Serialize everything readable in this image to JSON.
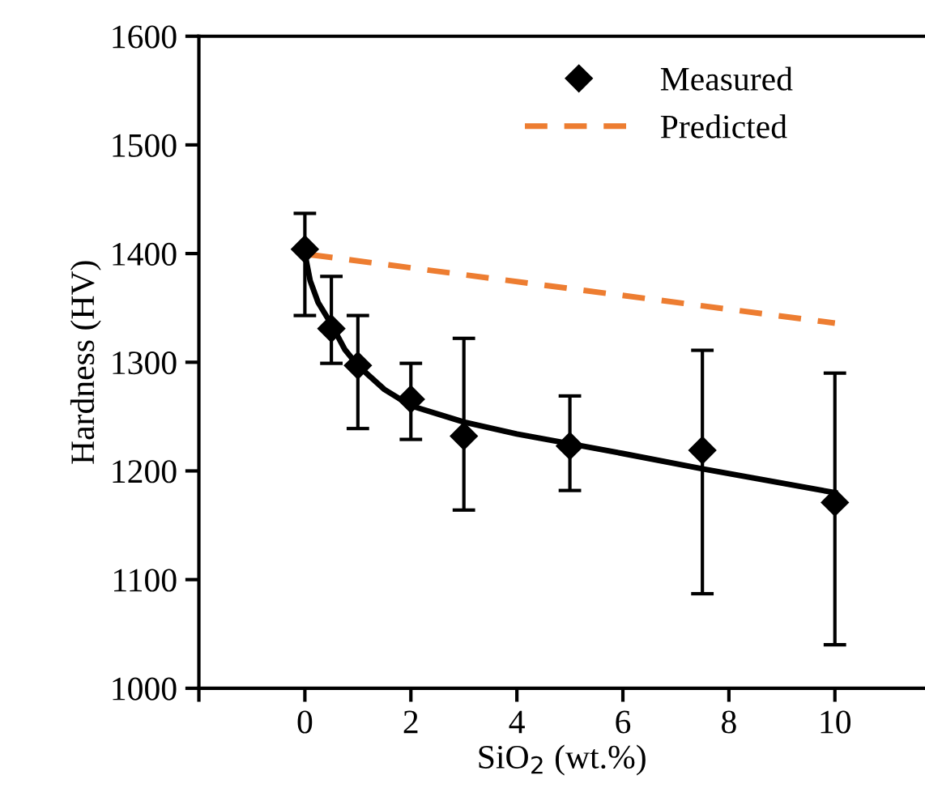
{
  "chart_data": {
    "type": "scatter",
    "xlabel": "SiO$_{2}$ (wt.%)",
    "ylabel": "Hardness (HV)",
    "xlim": [
      -2,
      11.7
    ],
    "xticks": [
      {
        "value": -2,
        "label": null
      },
      0,
      2,
      4,
      6,
      8,
      10
    ],
    "ylim": [
      1000,
      1600
    ],
    "yticks": [
      1000,
      1100,
      1200,
      1300,
      1400,
      1500,
      1600
    ],
    "grid": false,
    "legend": "top right",
    "series": [
      {
        "name": "Measured",
        "color": "#000000",
        "marker": "diamond",
        "x": [
          0,
          0.5,
          1,
          2,
          3,
          5,
          7.5,
          10
        ],
        "values": [
          1404,
          1331,
          1297,
          1266,
          1232,
          1223,
          1219,
          1171
        ],
        "errors": [
          [
            1343,
            1437
          ],
          [
            1299,
            1379
          ],
          [
            1239,
            1343
          ],
          [
            1229,
            1299
          ],
          [
            1164,
            1322
          ],
          [
            1182,
            1269
          ],
          [
            1087,
            1311
          ],
          [
            1040,
            1290
          ]
        ]
      },
      {
        "type": "line",
        "color": "#000000",
        "line_style": "solid",
        "x": [
          0,
          0.1,
          0.25,
          0.5,
          0.75,
          1,
          1.5,
          2,
          3,
          4,
          5,
          6,
          7.5,
          10
        ],
        "values": [
          1400,
          1375,
          1355,
          1335,
          1312,
          1297,
          1275,
          1260,
          1245,
          1234,
          1225,
          1216,
          1202,
          1180
        ]
      },
      {
        "name": "Predicted",
        "type": "line",
        "color": "#ed7d31",
        "line_style": "dashed",
        "x": [
          0.1,
          10
        ],
        "values": [
          1399,
          1336
        ]
      }
    ]
  }
}
